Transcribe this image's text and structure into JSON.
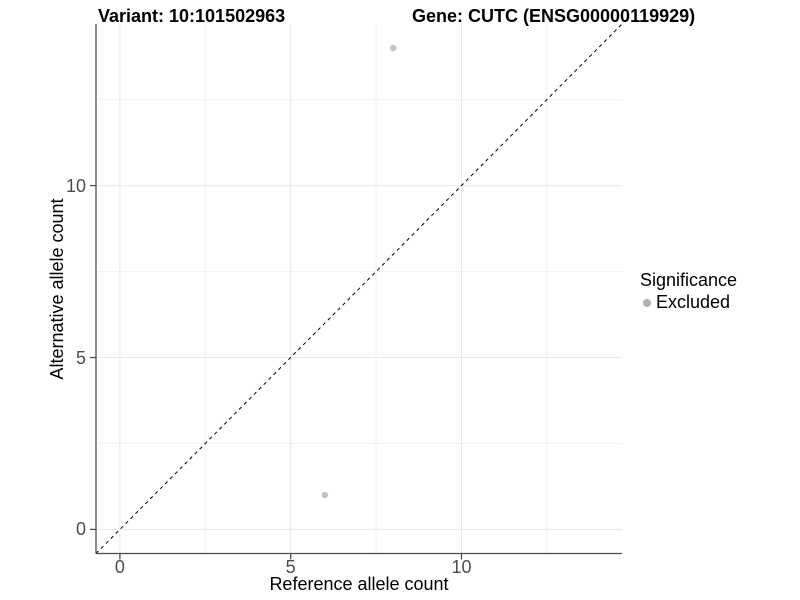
{
  "colors": {
    "background": "#ffffff",
    "axis_line": "#4d4d4d",
    "tick_mark": "#4d4d4d",
    "tick_label": "#4d4d4d",
    "grid_major": "#e8e8e8",
    "grid_minor": "#f3f3f3",
    "title": "#000000"
  },
  "legend": {
    "title": "Significance",
    "items": [
      {
        "label": "Excluded",
        "color": "#b0b0b0"
      }
    ]
  },
  "chart_data": {
    "type": "scatter",
    "title_left": "Variant: 10:101502963",
    "title_right": "Gene: CUTC (ENSG00000119929)",
    "xlabel": "Reference allele count",
    "ylabel": "Alternative allele count",
    "xlim": [
      -0.7,
      14.7
    ],
    "ylim": [
      -0.7,
      14.7
    ],
    "x_ticks": {
      "values": [
        0,
        5,
        10
      ],
      "labels": [
        "0",
        "5",
        "10"
      ],
      "minor": [
        2.5,
        7.5,
        12.5
      ]
    },
    "y_ticks": {
      "values": [
        0,
        5,
        10
      ],
      "labels": [
        "0",
        "5",
        "10"
      ],
      "minor": [
        2.5,
        7.5,
        12.5
      ]
    },
    "grid": "major+minor",
    "legend_position": "right",
    "series": [
      {
        "name": "Excluded",
        "color": "#c3c3c3",
        "point_radius": 3.2,
        "points": [
          {
            "x": 6,
            "y": 1
          },
          {
            "x": 8,
            "y": 14
          }
        ]
      }
    ],
    "reference_line": {
      "kind": "identity",
      "slope": 1,
      "intercept": 0,
      "style": "dashed",
      "color": "#000000"
    }
  }
}
